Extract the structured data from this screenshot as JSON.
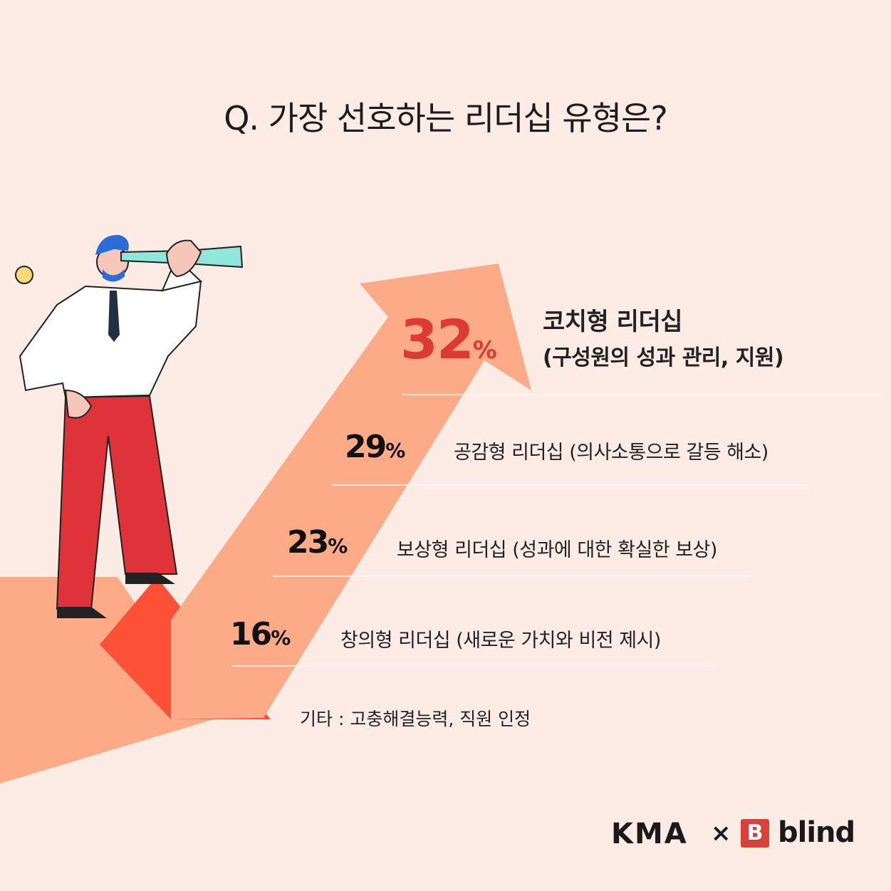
{
  "title": "Q. 가장 선호하는 리더십 유형은?",
  "chart_data": {
    "type": "bar",
    "categories": [
      "코치형 리더십",
      "공감형 리더십",
      "보상형 리더십",
      "창의형 리더십"
    ],
    "values": [
      32,
      29,
      23,
      16
    ],
    "details": [
      "(구성원의 성과 관리, 지원)",
      "(의사소통으로 갈등 해소)",
      "(성과에 대한 확실한 보상)",
      "(새로운 가치와 비전 제시)"
    ],
    "unit": "%",
    "labels": [
      "코치형 리더십",
      "공감형 리더십 (의사소통으로 갈등 해소)",
      "보상형 리더십 (성과에 대한 확실한 보상)",
      "창의형 리더십 (새로운 가치와 비전 제시)"
    ],
    "top_detail": "(구성원의 성과 관리, 지원)"
  },
  "note": "기타 : 고충해결능력, 직원 인정",
  "brand": {
    "kma": "KMA",
    "times": "×",
    "blind_mark": "B",
    "blind": "blind"
  },
  "colors": {
    "background": "#fdece6",
    "arrow": "#fdab86",
    "arrow_dark": "#fe5138",
    "accent": "#de3a34"
  }
}
